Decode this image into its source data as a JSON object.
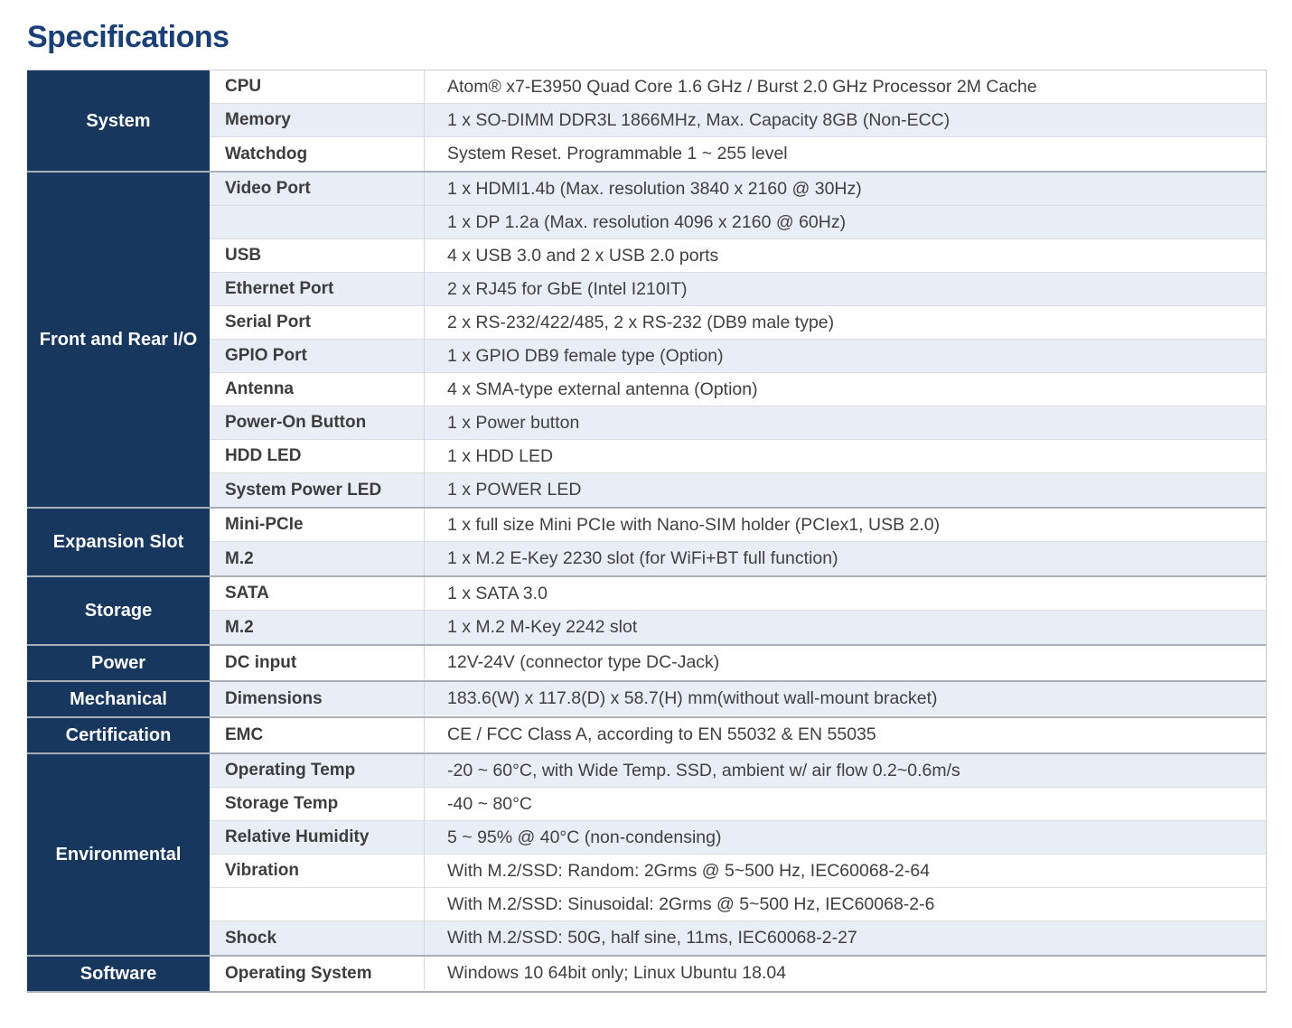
{
  "title": "Specifications",
  "colors": {
    "title_text": "#1B4077",
    "category_bg": "#17375F",
    "category_text": "#FFFFFF",
    "row_alt_bg": "#E9EEF6",
    "row_bg": "#FFFFFF",
    "body_text": "#404040",
    "row_border": "#DADDE2",
    "section_border": "#A9AFB8"
  },
  "table": {
    "sections": [
      {
        "category": "System",
        "rows": [
          {
            "label": "CPU",
            "lines": [
              "Atom® x7-E3950 Quad Core 1.6 GHz / Burst 2.0 GHz Processor 2M Cache"
            ]
          },
          {
            "label": "Memory",
            "lines": [
              "1 x SO-DIMM DDR3L 1866MHz, Max. Capacity 8GB (Non-ECC)"
            ]
          },
          {
            "label": "Watchdog",
            "lines": [
              "System Reset. Programmable 1 ~ 255 level"
            ]
          }
        ]
      },
      {
        "category": "Front and Rear I/O",
        "rows": [
          {
            "label": "Video Port",
            "lines": [
              "1 x HDMI1.4b (Max. resolution 3840 x 2160 @ 30Hz)",
              "1 x DP 1.2a (Max. resolution 4096 x 2160 @ 60Hz)"
            ]
          },
          {
            "label": "USB",
            "lines": [
              "4 x USB 3.0 and 2 x USB 2.0 ports"
            ]
          },
          {
            "label": "Ethernet Port",
            "lines": [
              "2 x RJ45 for GbE (Intel I210IT)"
            ]
          },
          {
            "label": "Serial Port",
            "lines": [
              "2 x RS-232/422/485, 2 x RS-232 (DB9 male type)"
            ]
          },
          {
            "label": "GPIO Port",
            "lines": [
              "1 x GPIO DB9 female type (Option)"
            ]
          },
          {
            "label": "Antenna",
            "lines": [
              "4 x SMA-type external antenna (Option)"
            ]
          },
          {
            "label": "Power-On Button",
            "lines": [
              "1 x Power button"
            ]
          },
          {
            "label": "HDD LED",
            "lines": [
              "1 x HDD LED"
            ]
          },
          {
            "label": "System Power LED",
            "lines": [
              "1 x POWER LED"
            ]
          }
        ]
      },
      {
        "category": "Expansion Slot",
        "rows": [
          {
            "label": "Mini-PCIe",
            "lines": [
              "1 x full size Mini PCIe with Nano-SIM holder (PCIex1, USB 2.0)"
            ]
          },
          {
            "label": "M.2",
            "lines": [
              "1 x M.2 E-Key 2230 slot (for WiFi+BT full function)"
            ]
          }
        ]
      },
      {
        "category": "Storage",
        "rows": [
          {
            "label": "SATA",
            "lines": [
              "1 x SATA 3.0"
            ]
          },
          {
            "label": "M.2",
            "lines": [
              "1 x M.2 M-Key 2242 slot"
            ]
          }
        ]
      },
      {
        "category": "Power",
        "rows": [
          {
            "label": "DC input",
            "lines": [
              "12V-24V (connector type DC-Jack)"
            ]
          }
        ]
      },
      {
        "category": "Mechanical",
        "rows": [
          {
            "label": "Dimensions",
            "lines": [
              "183.6(W) x 117.8(D) x 58.7(H) mm(without wall-mount bracket)"
            ]
          }
        ]
      },
      {
        "category": "Certification",
        "rows": [
          {
            "label": "EMC",
            "lines": [
              "CE / FCC Class A, according to EN 55032 & EN 55035"
            ]
          }
        ]
      },
      {
        "category": "Environmental",
        "rows": [
          {
            "label": "Operating Temp",
            "lines": [
              "-20 ~ 60°C, with Wide Temp. SSD, ambient w/ air flow 0.2~0.6m/s"
            ]
          },
          {
            "label": "Storage Temp",
            "lines": [
              "-40 ~ 80°C"
            ]
          },
          {
            "label": "Relative Humidity",
            "lines": [
              "5 ~ 95% @ 40°C (non-condensing)"
            ]
          },
          {
            "label": "Vibration",
            "lines": [
              "With M.2/SSD: Random: 2Grms @ 5~500 Hz, IEC60068-2-64",
              "With M.2/SSD: Sinusoidal: 2Grms @ 5~500 Hz, IEC60068-2-6"
            ]
          },
          {
            "label": "Shock",
            "lines": [
              "With M.2/SSD: 50G, half sine, 11ms, IEC60068-2-27"
            ]
          }
        ]
      },
      {
        "category": "Software",
        "rows": [
          {
            "label": "Operating System",
            "lines": [
              "Windows 10 64bit only; Linux Ubuntu 18.04"
            ]
          }
        ]
      }
    ]
  }
}
